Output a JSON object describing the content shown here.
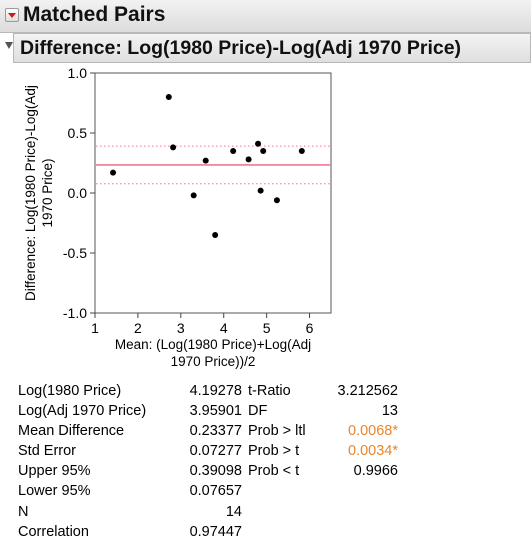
{
  "report": {
    "title": "Matched Pairs",
    "subtitle": "Difference: Log(1980 Price)-Log(Adj 1970 Price)"
  },
  "chart_data": {
    "type": "scatter",
    "xlabel": "Mean: (Log(1980 Price)+Log(Adj 1970 Price))/2",
    "xlabel_lines": [
      "Mean: (Log(1980 Price)+Log(Adj",
      "1970 Price))/2"
    ],
    "ylabel": "Difference: Log(1980 Price)-Log(Adj 1970 Price)",
    "ylabel_lines": [
      "Difference: Log(1980 Price)-Log(Adj",
      "1970 Price)"
    ],
    "xlim": [
      1,
      6.5
    ],
    "ylim": [
      -1.0,
      1.0
    ],
    "x_ticks": [
      1,
      2,
      3,
      4,
      5,
      6
    ],
    "y_ticks": [
      -1.0,
      -0.5,
      0.0,
      0.5,
      1.0
    ],
    "y_tick_labels": [
      "-1.0",
      "-0.5",
      "0.0",
      "0.5",
      "1.0"
    ],
    "grid": false,
    "mean_line": 0.23377,
    "ci_lines": [
      0.39098,
      0.07657
    ],
    "line_colors": {
      "mean": "#f07890",
      "ci": "#f07890"
    },
    "points": [
      {
        "x": 1.42,
        "y": 0.17
      },
      {
        "x": 2.72,
        "y": 0.8
      },
      {
        "x": 2.82,
        "y": 0.38
      },
      {
        "x": 3.3,
        "y": -0.02
      },
      {
        "x": 3.58,
        "y": 0.27
      },
      {
        "x": 3.8,
        "y": -0.35
      },
      {
        "x": 4.22,
        "y": 0.35
      },
      {
        "x": 4.58,
        "y": 0.28
      },
      {
        "x": 4.8,
        "y": 0.41
      },
      {
        "x": 4.86,
        "y": 0.02
      },
      {
        "x": 4.92,
        "y": 0.35
      },
      {
        "x": 5.24,
        "y": -0.06
      },
      {
        "x": 5.82,
        "y": 0.35
      }
    ]
  },
  "stats_rows": [
    {
      "l1": "Log(1980 Price)",
      "v1": "4.19278",
      "l2": "t-Ratio",
      "v2": "3.212562",
      "sig": false
    },
    {
      "l1": "Log(Adj 1970 Price)",
      "v1": "3.95901",
      "l2": "DF",
      "v2": "13",
      "sig": false
    },
    {
      "l1": "Mean Difference",
      "v1": "0.23377",
      "l2": "Prob > ltl",
      "v2": "0.0068*",
      "sig": true
    },
    {
      "l1": "Std Error",
      "v1": "0.07277",
      "l2": "Prob > t",
      "v2": "0.0034*",
      "sig": true
    },
    {
      "l1": "Upper 95%",
      "v1": "0.39098",
      "l2": "Prob < t",
      "v2": "0.9966",
      "sig": false
    },
    {
      "l1": "Lower 95%",
      "v1": "0.07657",
      "l2": "",
      "v2": "",
      "sig": false
    },
    {
      "l1": "N",
      "v1": "14",
      "l2": "",
      "v2": "",
      "sig": false
    },
    {
      "l1": "Correlation",
      "v1": "0.97447",
      "l2": "",
      "v2": "",
      "sig": false
    }
  ],
  "colors": {
    "significant": "#e8862a"
  }
}
